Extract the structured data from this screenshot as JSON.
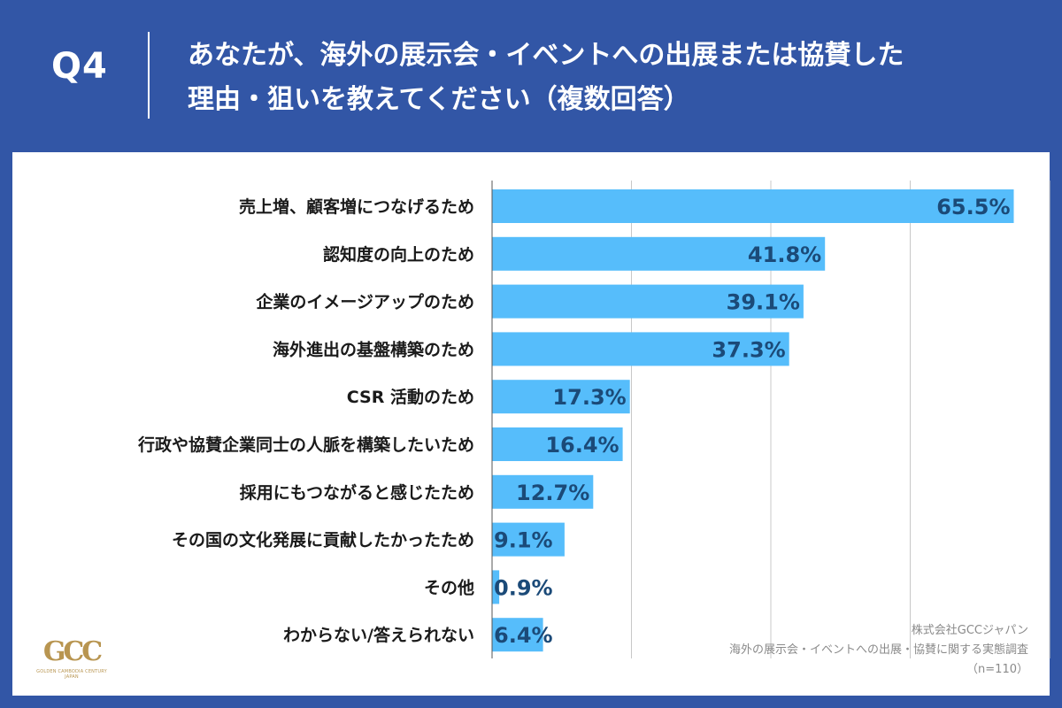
{
  "header": {
    "question_number": "Q4",
    "title_line1": "あなたが、海外の展示会・イベントへの出展または協賛した",
    "title_line2": "理由・狙いを教えてください（複数回答）"
  },
  "chart_data": {
    "type": "bar",
    "orientation": "horizontal",
    "categories": [
      "売上増、顧客増につなげるため",
      "認知度の向上のため",
      "企業のイメージアップのため",
      "海外進出の基盤構築のため",
      "CSR 活動のため",
      "行政や協賛企業同士の人脈を構築したいため",
      "採用にもつながると感じたため",
      "その国の文化発展に貢献したかったため",
      "その他",
      "わからない/答えられない"
    ],
    "values": [
      65.5,
      41.8,
      39.1,
      37.3,
      17.3,
      16.4,
      12.7,
      9.1,
      0.9,
      6.4
    ],
    "value_labels": [
      "65.5%",
      "41.8%",
      "39.1%",
      "37.3%",
      "17.3%",
      "16.4%",
      "12.7%",
      "9.1%",
      "0.9%",
      "6.4%"
    ],
    "xlim": [
      0,
      70
    ],
    "grid": true,
    "grid_interval": 17.5,
    "bar_color": "#56bdfb",
    "label_color": "#1b4a78"
  },
  "logo": {
    "mark": "GCC",
    "tagline": "GOLDEN CAMBODIA CENTURY",
    "sub": "JAPAN",
    "color": "#b89550"
  },
  "source": {
    "line1": "株式会社GCCジャパン",
    "line2": "海外の展示会・イベントへの出展・協賛に関する実態調査",
    "line3": "（n=110）"
  },
  "colors": {
    "background": "#3256a6",
    "panel": "#ffffff",
    "grid": "#c8c8c8"
  }
}
